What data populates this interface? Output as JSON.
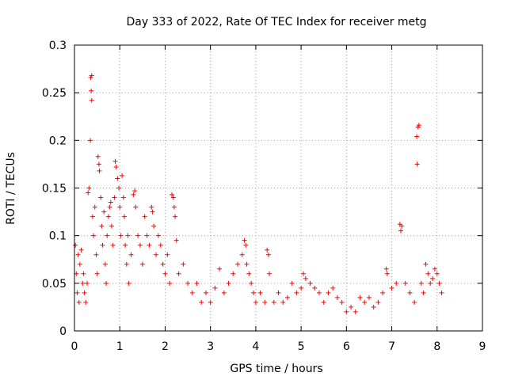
{
  "chart_data": {
    "type": "scatter",
    "title": "Day 333 of 2022, Rate Of TEC Index for receiver metg",
    "xlabel": "GPS time / hours",
    "ylabel": "ROTI / TECUs",
    "xlim": [
      0,
      9
    ],
    "ylim": [
      0,
      0.3
    ],
    "x_ticks": [
      "0",
      "1",
      "2",
      "3",
      "4",
      "5",
      "6",
      "7",
      "8",
      "9"
    ],
    "y_ticks": [
      "0",
      "0.05",
      "0.1",
      "0.15",
      "0.2",
      "0.25",
      "0.3"
    ],
    "grid": true,
    "marker": "+",
    "color": "#ff0000",
    "series": [
      {
        "values": [
          [
            0.02,
            0.09
          ],
          [
            0.04,
            0.06
          ],
          [
            0.06,
            0.04
          ],
          [
            0.08,
            0.08
          ],
          [
            0.1,
            0.03
          ],
          [
            0.12,
            0.07
          ],
          [
            0.15,
            0.085
          ],
          [
            0.18,
            0.05
          ],
          [
            0.2,
            0.06
          ],
          [
            0.22,
            0.04
          ],
          [
            0.25,
            0.03
          ],
          [
            0.28,
            0.05
          ],
          [
            0.3,
            0.145
          ],
          [
            0.32,
            0.15
          ],
          [
            0.35,
            0.2
          ],
          [
            0.36,
            0.266
          ],
          [
            0.37,
            0.252
          ],
          [
            0.38,
            0.242
          ],
          [
            0.38,
            0.268
          ],
          [
            0.4,
            0.12
          ],
          [
            0.42,
            0.1
          ],
          [
            0.45,
            0.13
          ],
          [
            0.48,
            0.08
          ],
          [
            0.5,
            0.06
          ],
          [
            0.52,
            0.183
          ],
          [
            0.54,
            0.175
          ],
          [
            0.55,
            0.168
          ],
          [
            0.58,
            0.14
          ],
          [
            0.6,
            0.11
          ],
          [
            0.62,
            0.09
          ],
          [
            0.65,
            0.125
          ],
          [
            0.68,
            0.07
          ],
          [
            0.7,
            0.05
          ],
          [
            0.72,
            0.1
          ],
          [
            0.75,
            0.12
          ],
          [
            0.78,
            0.13
          ],
          [
            0.8,
            0.135
          ],
          [
            0.82,
            0.11
          ],
          [
            0.85,
            0.09
          ],
          [
            0.88,
            0.14
          ],
          [
            0.9,
            0.178
          ],
          [
            0.92,
            0.172
          ],
          [
            0.95,
            0.16
          ],
          [
            0.98,
            0.15
          ],
          [
            1.0,
            0.13
          ],
          [
            1.02,
            0.1
          ],
          [
            1.05,
            0.163
          ],
          [
            1.08,
            0.14
          ],
          [
            1.1,
            0.12
          ],
          [
            1.12,
            0.09
          ],
          [
            1.15,
            0.07
          ],
          [
            1.18,
            0.1
          ],
          [
            1.2,
            0.05
          ],
          [
            1.25,
            0.08
          ],
          [
            1.3,
            0.143
          ],
          [
            1.33,
            0.147
          ],
          [
            1.35,
            0.13
          ],
          [
            1.4,
            0.1
          ],
          [
            1.45,
            0.09
          ],
          [
            1.5,
            0.07
          ],
          [
            1.55,
            0.12
          ],
          [
            1.6,
            0.1
          ],
          [
            1.65,
            0.09
          ],
          [
            1.7,
            0.13
          ],
          [
            1.72,
            0.125
          ],
          [
            1.75,
            0.11
          ],
          [
            1.8,
            0.08
          ],
          [
            1.85,
            0.1
          ],
          [
            1.9,
            0.09
          ],
          [
            1.95,
            0.07
          ],
          [
            2.0,
            0.06
          ],
          [
            2.05,
            0.08
          ],
          [
            2.1,
            0.05
          ],
          [
            2.15,
            0.143
          ],
          [
            2.18,
            0.14
          ],
          [
            2.2,
            0.13
          ],
          [
            2.22,
            0.12
          ],
          [
            2.25,
            0.095
          ],
          [
            2.3,
            0.06
          ],
          [
            2.4,
            0.07
          ],
          [
            2.5,
            0.05
          ],
          [
            2.6,
            0.04
          ],
          [
            2.7,
            0.05
          ],
          [
            2.8,
            0.03
          ],
          [
            2.9,
            0.04
          ],
          [
            3.0,
            0.03
          ],
          [
            3.1,
            0.045
          ],
          [
            3.2,
            0.065
          ],
          [
            3.3,
            0.04
          ],
          [
            3.4,
            0.05
          ],
          [
            3.5,
            0.06
          ],
          [
            3.6,
            0.07
          ],
          [
            3.7,
            0.08
          ],
          [
            3.75,
            0.095
          ],
          [
            3.78,
            0.09
          ],
          [
            3.8,
            0.07
          ],
          [
            3.85,
            0.06
          ],
          [
            3.9,
            0.05
          ],
          [
            3.95,
            0.04
          ],
          [
            4.0,
            0.03
          ],
          [
            4.1,
            0.04
          ],
          [
            4.2,
            0.03
          ],
          [
            4.25,
            0.085
          ],
          [
            4.28,
            0.08
          ],
          [
            4.3,
            0.06
          ],
          [
            4.4,
            0.03
          ],
          [
            4.5,
            0.04
          ],
          [
            4.6,
            0.03
          ],
          [
            4.7,
            0.035
          ],
          [
            4.8,
            0.05
          ],
          [
            4.9,
            0.04
          ],
          [
            5.0,
            0.045
          ],
          [
            5.05,
            0.06
          ],
          [
            5.1,
            0.055
          ],
          [
            5.2,
            0.05
          ],
          [
            5.3,
            0.045
          ],
          [
            5.4,
            0.04
          ],
          [
            5.5,
            0.03
          ],
          [
            5.6,
            0.04
          ],
          [
            5.7,
            0.045
          ],
          [
            5.8,
            0.035
          ],
          [
            5.9,
            0.03
          ],
          [
            6.0,
            0.02
          ],
          [
            6.1,
            0.025
          ],
          [
            6.2,
            0.02
          ],
          [
            6.3,
            0.035
          ],
          [
            6.4,
            0.03
          ],
          [
            6.5,
            0.035
          ],
          [
            6.6,
            0.025
          ],
          [
            6.7,
            0.03
          ],
          [
            6.8,
            0.04
          ],
          [
            6.88,
            0.065
          ],
          [
            6.9,
            0.06
          ],
          [
            7.0,
            0.045
          ],
          [
            7.1,
            0.05
          ],
          [
            7.18,
            0.112
          ],
          [
            7.2,
            0.105
          ],
          [
            7.22,
            0.11
          ],
          [
            7.3,
            0.05
          ],
          [
            7.4,
            0.04
          ],
          [
            7.5,
            0.03
          ],
          [
            7.55,
            0.204
          ],
          [
            7.56,
            0.175
          ],
          [
            7.58,
            0.214
          ],
          [
            7.6,
            0.216
          ],
          [
            7.65,
            0.05
          ],
          [
            7.7,
            0.04
          ],
          [
            7.75,
            0.07
          ],
          [
            7.8,
            0.06
          ],
          [
            7.85,
            0.05
          ],
          [
            7.9,
            0.055
          ],
          [
            7.95,
            0.065
          ],
          [
            8.0,
            0.06
          ],
          [
            8.05,
            0.05
          ],
          [
            8.1,
            0.04
          ]
        ]
      }
    ]
  }
}
